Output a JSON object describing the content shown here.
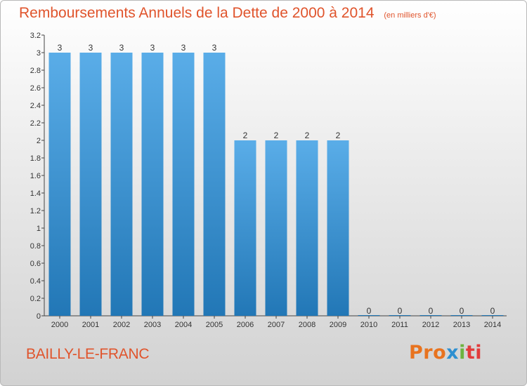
{
  "title": "Remboursements Annuels de la Dette de 2000 à 2014",
  "subtitle": "(en milliers d'€)",
  "commune": "BAILLY-LE-FRANC",
  "logo": {
    "letters": [
      "Pro",
      "x",
      "i",
      "ti"
    ],
    "colors": [
      "#e8731f",
      "#2d8fd0",
      "#6db33f",
      "#e23b3b"
    ]
  },
  "colors": {
    "bar_light": "#5aade8",
    "bar_dark": "#2277b6",
    "title": "#e0542c"
  },
  "chart_data": {
    "type": "bar",
    "categories": [
      "2000",
      "2001",
      "2002",
      "2003",
      "2004",
      "2005",
      "2006",
      "2007",
      "2008",
      "2009",
      "2010",
      "2011",
      "2012",
      "2013",
      "2014"
    ],
    "values": [
      3,
      3,
      3,
      3,
      3,
      3,
      2,
      2,
      2,
      2,
      0,
      0,
      0,
      0,
      0
    ],
    "data_labels": [
      "3",
      "3",
      "3",
      "3",
      "3",
      "3",
      "2",
      "2",
      "2",
      "2",
      "0",
      "0",
      "0",
      "0",
      "0"
    ],
    "ylim": [
      0,
      3.2
    ],
    "yticks": [
      0,
      0.2,
      0.4,
      0.6,
      0.8,
      1,
      1.2,
      1.4,
      1.6,
      1.8,
      2,
      2.2,
      2.4,
      2.6,
      2.8,
      3,
      3.2
    ],
    "ytick_labels": [
      "0",
      "0.2",
      "0.4",
      "0.6",
      "0.8",
      "1",
      "1.2",
      "1.4",
      "1.6",
      "1.8",
      "2",
      "2.2",
      "2.4",
      "2.6",
      "2.8",
      "3",
      "3.2"
    ],
    "xlabel": "",
    "ylabel": "",
    "grid": false,
    "legend": "none"
  }
}
